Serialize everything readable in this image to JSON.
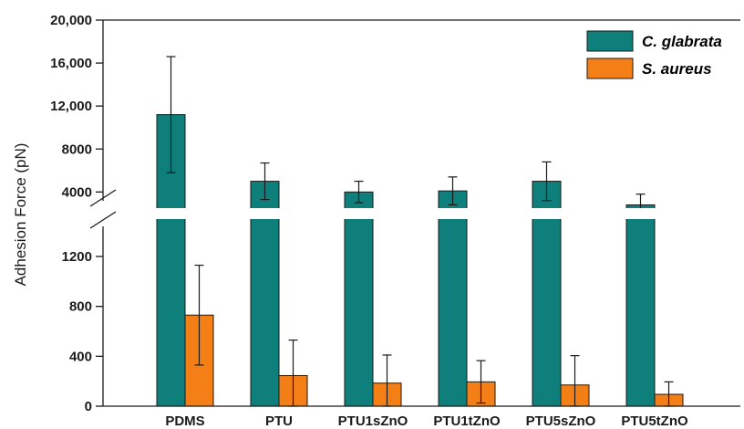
{
  "chart_data": {
    "type": "bar",
    "ylabel": "Adhesion Force (pN)",
    "categories": [
      "PDMS",
      "PTU",
      "PTU1sZnO",
      "PTU1tZnO",
      "PTU5sZnO",
      "PTU5tZnO"
    ],
    "series": [
      {
        "name": "C. glabrata",
        "color": "#0e7f7a",
        "values": [
          11200,
          5000,
          4000,
          4100,
          5000,
          2800
        ],
        "errors": [
          5400,
          1700,
          1000,
          1300,
          1800,
          1000
        ]
      },
      {
        "name": "S. aureus",
        "color": "#f47f16",
        "values": [
          730,
          245,
          185,
          195,
          170,
          95
        ],
        "errors": [
          400,
          285,
          225,
          170,
          235,
          100
        ]
      }
    ],
    "broken_axis": {
      "lower": {
        "ylim": [
          0,
          1500
        ],
        "ticks": [
          0,
          400,
          800,
          1200
        ],
        "tick_labels": [
          "0",
          "400",
          "800",
          "1200"
        ]
      },
      "upper": {
        "ylim": [
          2500,
          20000
        ],
        "ticks": [
          4000,
          8000,
          12000,
          16000,
          20000
        ],
        "tick_labels": [
          "4000",
          "8000",
          "12,000",
          "16,000",
          "20,000"
        ]
      }
    },
    "legend_position": "top-right",
    "grid": false
  }
}
